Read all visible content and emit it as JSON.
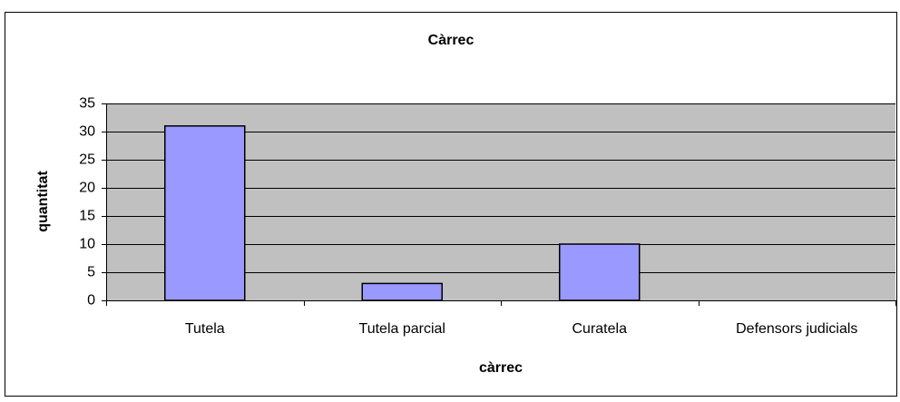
{
  "chart_data": {
    "type": "bar",
    "title": "Càrrec",
    "x_label": "càrrec",
    "y_label": "quantitat",
    "categories": [
      "Tutela",
      "Tutela parcial",
      "Curatela",
      "Defensors judicials"
    ],
    "values": [
      31,
      3,
      10,
      0
    ],
    "color": "#9999ff",
    "ylim": [
      0,
      35
    ],
    "yticks": [
      0,
      5,
      10,
      15,
      20,
      25,
      30,
      35
    ],
    "grid": true
  }
}
